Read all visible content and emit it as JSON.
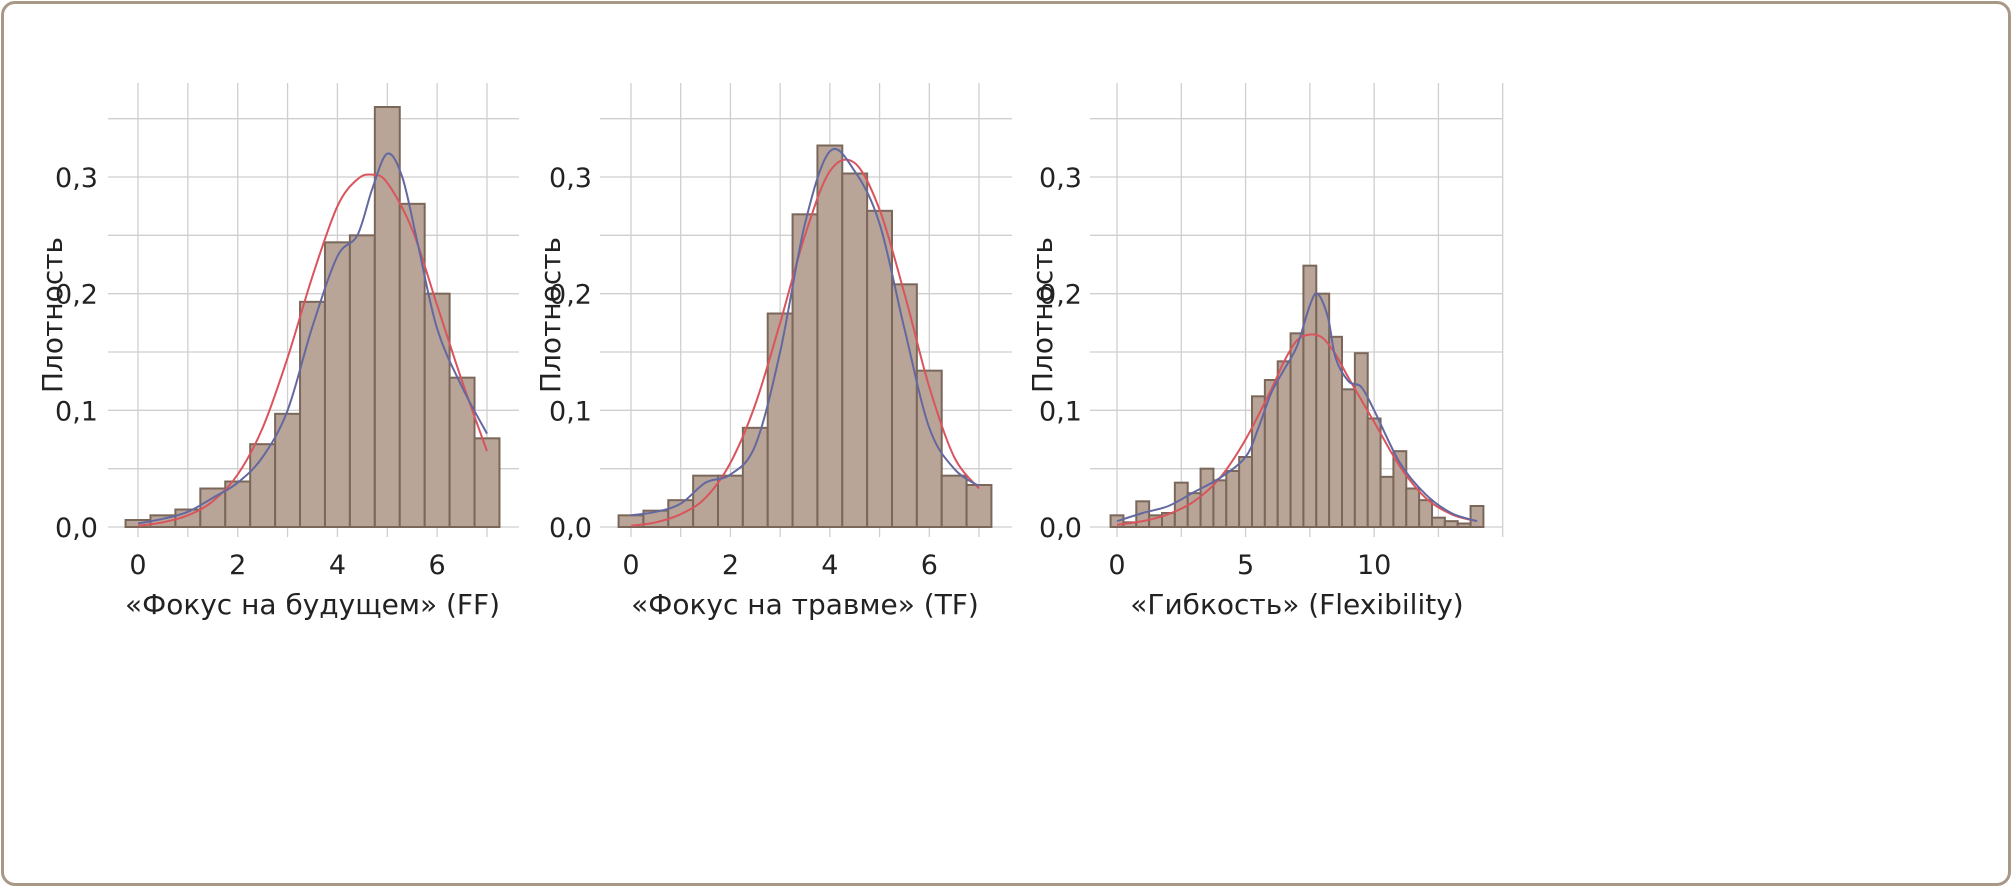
{
  "figure": {
    "colors": {
      "frame": "#a89886",
      "bar_fill": "#b8a598",
      "bar_stroke": "#7a675a",
      "grid": "#cfcfcf",
      "kde": "#6468a0",
      "normal": "#d9545c",
      "text": "#222222"
    }
  },
  "chart_data": [
    {
      "type": "bar",
      "subtype": "histogram",
      "xlabel": "«Фокус на будущем» (FF)",
      "ylabel": "Плотность",
      "xlim": [
        -0.5,
        7.6
      ],
      "ylim": [
        0,
        0.38
      ],
      "xticks": [
        0,
        2,
        4,
        6
      ],
      "xtick_labels": [
        "0",
        "2",
        "4",
        "6"
      ],
      "yticks": [
        0,
        0.1,
        0.2,
        0.3
      ],
      "ytick_labels": [
        "0,0",
        "0,1",
        "0,2",
        "0,3"
      ],
      "x_grid_lines": [
        0,
        1,
        2,
        3,
        4,
        5,
        6,
        7
      ],
      "y_grid_lines": [
        0,
        0.05,
        0.1,
        0.15,
        0.2,
        0.25,
        0.3,
        0.35
      ],
      "bin_width": 0.5,
      "bin_edges_start": -0.25,
      "values": [
        0.006,
        0.01,
        0.015,
        0.033,
        0.039,
        0.071,
        0.097,
        0.193,
        0.244,
        0.25,
        0.36,
        0.277,
        0.2,
        0.128,
        0.076
      ],
      "kde_curve": {
        "x": [
          0,
          0.5,
          1,
          1.5,
          2,
          2.5,
          3,
          3.5,
          4,
          4.4,
          4.7,
          5,
          5.3,
          5.6,
          6,
          6.5,
          7
        ],
        "y": [
          0.003,
          0.007,
          0.013,
          0.025,
          0.038,
          0.06,
          0.1,
          0.172,
          0.232,
          0.25,
          0.29,
          0.32,
          0.3,
          0.245,
          0.17,
          0.12,
          0.08
        ]
      },
      "normal_curve": {
        "x": [
          0,
          0.5,
          1,
          1.5,
          2,
          2.5,
          3,
          3.5,
          4,
          4.4,
          4.7,
          5,
          5.5,
          6,
          6.5,
          7
        ],
        "y": [
          0.001,
          0.004,
          0.01,
          0.022,
          0.045,
          0.085,
          0.145,
          0.215,
          0.275,
          0.298,
          0.302,
          0.295,
          0.255,
          0.19,
          0.125,
          0.065
        ]
      }
    },
    {
      "type": "bar",
      "subtype": "histogram",
      "xlabel": "«Фокус на травме» (TF)",
      "ylabel": "Плотность",
      "xlim": [
        -0.5,
        7.6
      ],
      "ylim": [
        0,
        0.38
      ],
      "xticks": [
        0,
        2,
        4,
        6
      ],
      "xtick_labels": [
        "0",
        "2",
        "4",
        "6"
      ],
      "yticks": [
        0,
        0.1,
        0.2,
        0.3
      ],
      "ytick_labels": [
        "0,0",
        "0,1",
        "0,2",
        "0,3"
      ],
      "x_grid_lines": [
        0,
        1,
        2,
        3,
        4,
        5,
        6,
        7
      ],
      "y_grid_lines": [
        0,
        0.05,
        0.1,
        0.15,
        0.2,
        0.25,
        0.3,
        0.35
      ],
      "bin_width": 0.5,
      "bin_edges_start": -0.25,
      "values": [
        0.01,
        0.014,
        0.023,
        0.044,
        0.044,
        0.085,
        0.183,
        0.268,
        0.327,
        0.303,
        0.271,
        0.208,
        0.134,
        0.044,
        0.036
      ],
      "kde_curve": {
        "x": [
          0,
          0.5,
          1,
          1.5,
          2,
          2.5,
          3,
          3.5,
          4,
          4.5,
          5,
          5.5,
          6,
          6.5,
          7
        ],
        "y": [
          0.01,
          0.013,
          0.02,
          0.038,
          0.045,
          0.07,
          0.15,
          0.26,
          0.322,
          0.305,
          0.26,
          0.17,
          0.085,
          0.05,
          0.035
        ]
      },
      "normal_curve": {
        "x": [
          0,
          0.5,
          1,
          1.5,
          2,
          2.5,
          3,
          3.5,
          4,
          4.5,
          5,
          5.5,
          6,
          6.5,
          7
        ],
        "y": [
          0.001,
          0.004,
          0.011,
          0.025,
          0.055,
          0.105,
          0.175,
          0.25,
          0.305,
          0.312,
          0.272,
          0.2,
          0.12,
          0.06,
          0.033
        ]
      }
    },
    {
      "type": "bar",
      "subtype": "histogram",
      "xlabel": "«Гибкость» (Flexibility)",
      "ylabel": "Плотность",
      "xlim": [
        -0.5,
        15.0
      ],
      "ylim": [
        0,
        0.38
      ],
      "xticks": [
        0,
        5,
        10
      ],
      "xtick_labels": [
        "0",
        "5",
        "10"
      ],
      "yticks": [
        0,
        0.1,
        0.2,
        0.3
      ],
      "ytick_labels": [
        "0,0",
        "0,1",
        "0,2",
        "0,3"
      ],
      "x_grid_lines": [
        0,
        2.5,
        5,
        7.5,
        10,
        12.5,
        15
      ],
      "y_grid_lines": [
        0,
        0.05,
        0.1,
        0.15,
        0.2,
        0.25,
        0.3,
        0.35
      ],
      "bin_width": 0.5,
      "bin_edges_start": -0.25,
      "values": [
        0.01,
        0.004,
        0.022,
        0.01,
        0.012,
        0.038,
        0.029,
        0.05,
        0.04,
        0.048,
        0.06,
        0.112,
        0.126,
        0.142,
        0.166,
        0.224,
        0.2,
        0.163,
        0.118,
        0.149,
        0.093,
        0.043,
        0.065,
        0.033,
        0.023,
        0.008,
        0.005,
        0.003,
        0.018
      ],
      "kde_curve": {
        "x": [
          0,
          1,
          2,
          3,
          4,
          5,
          5.5,
          6,
          6.5,
          7,
          7.5,
          7.8,
          8.2,
          8.5,
          9,
          9.5,
          10,
          11,
          12,
          13,
          14
        ],
        "y": [
          0.005,
          0.012,
          0.018,
          0.03,
          0.042,
          0.06,
          0.085,
          0.115,
          0.135,
          0.155,
          0.19,
          0.2,
          0.18,
          0.145,
          0.125,
          0.12,
          0.1,
          0.055,
          0.028,
          0.012,
          0.005
        ]
      },
      "normal_curve": {
        "x": [
          0,
          1,
          2,
          3,
          4,
          5,
          6,
          6.5,
          7,
          7.5,
          8,
          8.5,
          9,
          10,
          11,
          12,
          13,
          14
        ],
        "y": [
          0.002,
          0.005,
          0.011,
          0.022,
          0.042,
          0.075,
          0.118,
          0.142,
          0.16,
          0.165,
          0.162,
          0.148,
          0.128,
          0.09,
          0.052,
          0.025,
          0.011,
          0.005
        ]
      }
    }
  ]
}
